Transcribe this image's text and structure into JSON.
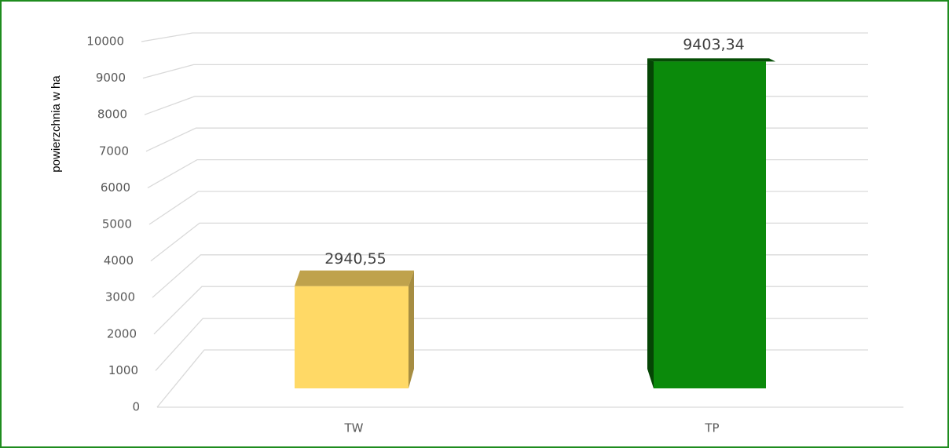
{
  "chart_data": {
    "type": "bar",
    "categories": [
      "TW",
      "TP"
    ],
    "values": [
      2940.55,
      9403.34
    ],
    "value_labels": [
      "2940,55",
      "9403,34"
    ],
    "colors": [
      "#ffd966",
      "#0b8a0b"
    ],
    "y_label": "powierzchnia w ha",
    "ylim": [
      0,
      10000
    ],
    "yticks": [
      0,
      1000,
      2000,
      3000,
      4000,
      5000,
      6000,
      7000,
      8000,
      9000,
      10000
    ],
    "grid": true
  }
}
